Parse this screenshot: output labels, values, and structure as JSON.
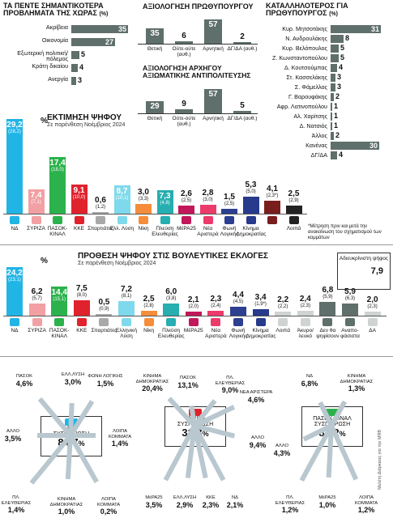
{
  "problems": {
    "title": "ΤΑ ΠΕΝΤΕ ΣΗΜΑΝΤΙΚΟΤΕΡΑ ΠΡΟΒΛΗΜΑΤΑ ΤΗΣ ΧΩΡΑΣ",
    "unit": "(%)",
    "items": [
      {
        "label": "Ακρίβεια",
        "value": "35"
      },
      {
        "label": "Οικονομία",
        "value": "27"
      },
      {
        "label": "Εξωτερική πολιτική/ πόλεμος",
        "value": "5"
      },
      {
        "label": "Κράτη δικαίου",
        "value": "4"
      },
      {
        "label": "Ανεργία",
        "value": "3"
      }
    ]
  },
  "gov_eval": {
    "title": "ΑΞΙΟΛΟΓΗΣΗ ΠΡΩΘΥΠΟΥΡΓΟΥ",
    "items": [
      {
        "label": "Θετική",
        "value": "35"
      },
      {
        "label": "Ούτε-ούτε (αυθ.)",
        "value": "6"
      },
      {
        "label": "Αρνητική",
        "value": "57"
      },
      {
        "label": "ΔΓ/ΔΑ (αυθ.)",
        "value": "2"
      }
    ]
  },
  "opp_eval": {
    "title": "ΑΞΙΟΛΟΓΗΣΗ ΑΡΧΗΓΟΥ ΑΞΙΩΜΑΤΙΚΗΣ ΑΝΤΙΠΟΛΙΤΕΥΣΗΣ",
    "items": [
      {
        "label": "Θετική",
        "value": "29"
      },
      {
        "label": "Ούτε-ούτε (αυθ.)",
        "value": "9"
      },
      {
        "label": "Αρνητική",
        "value": "57"
      },
      {
        "label": "ΔΓ/ΔΑ (αυθ.)",
        "value": "5"
      }
    ]
  },
  "pm_suit": {
    "title": "ΚΑΤΑΛΛΗΛΟΤΕΡΟΣ ΓΙΑ ΠΡΩΘΥΠΟΥΡΓΟΣ",
    "unit": "(%)",
    "items": [
      {
        "label": "Κυρ. Μητσοτάκης",
        "value": "31"
      },
      {
        "label": "Ν. Ανδρουλάκης",
        "value": "8"
      },
      {
        "label": "Κυρ. Βελόπουλος",
        "value": "5"
      },
      {
        "label": "Ζ. Κωνσταντοπούλου",
        "value": "5"
      },
      {
        "label": "Δ. Κουτσούμπας",
        "value": "4"
      },
      {
        "label": "Στ. Κασσελάκης",
        "value": "3"
      },
      {
        "label": "Σ. Φάμελλος",
        "value": "3"
      },
      {
        "label": "Γ. Βαρουφάκης",
        "value": "2"
      },
      {
        "label": "Αφρ. Λατινοπούλου",
        "value": "1"
      },
      {
        "label": "Αλ. Χαρίτσης",
        "value": "1"
      },
      {
        "label": "Δ. Νατσιός",
        "value": "1"
      },
      {
        "label": "Άλλος",
        "value": "2"
      },
      {
        "label": "Κανένας",
        "value": "30"
      },
      {
        "label": "ΔΓ/ΔΑ",
        "value": "4"
      }
    ]
  },
  "vote_est": {
    "title": "ΕΚΤΙΜΗΣΗ ΨΗΦΟΥ",
    "subtitle": "Σε παρένθεση Νοέμβριος 2024",
    "pct": "%",
    "note": "*Μέτρηση πριν και μετά την ανακοίνωση του σχηματισμού των κομμάτων",
    "parties": [
      {
        "label": "ΝΔ",
        "value": "29,2",
        "prev": "(28,2)",
        "color": "#21b5e6"
      },
      {
        "label": "ΣΥΡΙΖΑ",
        "value": "7,4",
        "prev": "(7,1)",
        "color": "#f2a0a3"
      },
      {
        "label": "ΠΑΣΟΚ-ΚΙΝΑΛ",
        "value": "17,4",
        "prev": "(18,0)",
        "color": "#2bb24c"
      },
      {
        "label": "ΚΚΕ",
        "value": "9,1",
        "prev": "(10,0)",
        "color": "#e0222d"
      },
      {
        "label": "Σπαρτιάτες",
        "value": "0,6",
        "prev": "(1,2)",
        "color": "#a9a9a9"
      },
      {
        "label": "Ελλ. Λύση",
        "value": "8,7",
        "prev": "(10,1)",
        "color": "#7fd9ec"
      },
      {
        "label": "Νίκη",
        "value": "3,0",
        "prev": "(3,3)",
        "color": "#f58d3a"
      },
      {
        "label": "Πλεύση Ελευθερίας",
        "value": "7,3",
        "prev": "(4,8)",
        "color": "#27aeb0"
      },
      {
        "label": "ΜέΡΑ25",
        "value": "2,6",
        "prev": "(2,5)",
        "color": "#c2185b"
      },
      {
        "label": "Νέα Αριστερά",
        "value": "2,8",
        "prev": "(3,0)",
        "color": "#ec3b6b"
      },
      {
        "label": "Φωνή Λογικής",
        "value": "1,5",
        "prev": "(2,5)",
        "color": "#2c3f90"
      },
      {
        "label": "Κίνημα Δημοκρατίας",
        "value": "5,3",
        "prev": "(5,0)",
        "color": "#273a8c"
      },
      {
        "label": "",
        "value": "4,1",
        "prev": "(2,3*)",
        "color": "#7a1d1d"
      },
      {
        "label": "Λοιπά",
        "value": "2,5",
        "prev": "(2,9)",
        "color": "#222222"
      }
    ]
  },
  "vote_int": {
    "title": "ΠΡΟΘΕΣΗ ΨΗΦΟΥ ΣΤΙΣ ΒΟΥΛΕΥΤΙΚΕΣ ΕΚΛΟΓΕΣ",
    "subtitle": "Σε παρένθεση Νοέμβριος 2024",
    "pct": "%",
    "box_title": "Αδιευκρίνιστη ψήφος",
    "box_value": "7,9",
    "parties": [
      {
        "label": "ΝΔ",
        "value": "24,2",
        "prev": "(23,1)",
        "color": "#21b5e6"
      },
      {
        "label": "ΣΥΡΙΖΑ",
        "value": "6,2",
        "prev": "(5,7)",
        "color": "#f2a0a3"
      },
      {
        "label": "ΠΑΣΟΚ-ΚΙΝΑΛ",
        "value": "14,4",
        "prev": "(15,1)",
        "color": "#2bb24c"
      },
      {
        "label": "ΚΚΕ",
        "value": "7,5",
        "prev": "(8,0)",
        "color": "#e0222d"
      },
      {
        "label": "Σπαρτιάτες",
        "value": "0,5",
        "prev": "(0,9)",
        "color": "#a9a9a9"
      },
      {
        "label": "Ελληνική Λύση",
        "value": "7,2",
        "prev": "(8,1)",
        "color": "#7fd9ec"
      },
      {
        "label": "Νίκη",
        "value": "2,5",
        "prev": "(2,8)",
        "color": "#f58d3a"
      },
      {
        "label": "Πλεύση Ελευθερίας",
        "value": "6,0",
        "prev": "(3,8)",
        "color": "#27aeb0"
      },
      {
        "label": "ΜέΡΑ25",
        "value": "2,1",
        "prev": "(2,0)",
        "color": "#c2185b"
      },
      {
        "label": "Νέα Αριστερά",
        "value": "2,3",
        "prev": "(2,4)",
        "color": "#ec3b6b"
      },
      {
        "label": "Φωνή Λογικής",
        "value": "4,4",
        "prev": "(4,5)",
        "color": "#2c3f90"
      },
      {
        "label": "Κίνημα Δημοκρατίας",
        "value": "3,4",
        "prev": "(1,9*)",
        "color": "#273a8c"
      },
      {
        "label": "Λοιπά",
        "value": "2,2",
        "prev": "(2,2)",
        "color": "#cfd4d3"
      },
      {
        "label": "Άκυρο/ λευκό",
        "value": "2,4",
        "prev": "(2,3)",
        "color": "#cfd4d3"
      },
      {
        "label": "Δεν θα ψηφίσουν",
        "value": "6,8",
        "prev": "(5,9)",
        "color": "#5f6f6c"
      },
      {
        "label": "Αναπο-φάσιστα",
        "value": "5,9",
        "prev": "(6,3)",
        "color": "#5f6f6c"
      },
      {
        "label": "ΔΑ",
        "value": "2,0",
        "prev": "(2,3)",
        "color": "#cfd4d3"
      }
    ]
  },
  "consolidation": {
    "source": "Μελέτη Διάρκειας για την ΜRB",
    "groups": [
      {
        "party": "ΝΔ",
        "title": "ΣΥΣΠΕΙΡΩΣΗ",
        "value": "84,7",
        "suffix": "%",
        "flows": [
          {
            "label": "ΠΑΣΟΚ",
            "value": "4,6%"
          },
          {
            "label": "ΕΛΛ.ΛΥΣΗ",
            "value": "3,0%"
          },
          {
            "label": "ΦΩΝΗ ΛΟΓΙΚΗΣ",
            "value": "1,5%"
          },
          {
            "label": "ΛΟΙΠΑ ΚΟΜΜΑΤΑ",
            "value": "1,4%"
          },
          {
            "label": "ΑΛΛΟ",
            "value": "3,5%"
          },
          {
            "label": "ΠΛ. ΕΛΕΥΘΕΡΙΑΣ",
            "value": "1,4%"
          },
          {
            "label": "ΚΙΝΗΜΑ ΔΗΜΟΚΡΑΤΙΑΣ",
            "value": "1,0%"
          },
          {
            "label": "ΛΟΙΠΑ ΚΟΜΜΑΤΑ",
            "value": "0,2%"
          }
        ]
      },
      {
        "party": "ΣΥΡΙΖΑ",
        "title": "ΣΥΣΠΕΙΡΩΣΗ",
        "value": "31,3",
        "suffix": "%",
        "flows": [
          {
            "label": "ΚΙΝΗΜΑ ΔΗΜΟΚΡΑΤΙΑΣ",
            "value": "20,4%"
          },
          {
            "label": "ΠΑΣΟΚ",
            "value": "13,1%"
          },
          {
            "label": "ΠΛ. ΕΛΕΥΘΕΡΙΑΣ",
            "value": "9,0%"
          },
          {
            "label": "ΝΕΑ ΑΡΙΣΤΕΡΑ",
            "value": "4,6%"
          },
          {
            "label": "ΑΛΛΟ",
            "value": "9,4%"
          },
          {
            "label": "ΜέΡΑ25",
            "value": "3,5%"
          },
          {
            "label": "ΕΛΛ.ΛΥΣΗ",
            "value": "2,9%"
          },
          {
            "label": "ΚΚΕ",
            "value": "2,3%"
          },
          {
            "label": "ΝΔ",
            "value": "2,1%"
          }
        ]
      },
      {
        "party": "ΠΑΣΟΚ-ΚΙΝΑΛ",
        "title": "ΣΥΣΠΕΙΡΩΣΗ",
        "value": "84,2",
        "suffix": "%",
        "flows": [
          {
            "label": "ΝΔ",
            "value": "6,8%"
          },
          {
            "label": "ΚΙΝΗΜΑ ΔΗΜΟΚΡΑΤΙΑΣ",
            "value": "1,3%"
          },
          {
            "label": "ΑΛΛΟ",
            "value": "4,3%"
          },
          {
            "label": "ΠΛ. ΕΛΕΥΘΕΡΙΑΣ",
            "value": "1,2%"
          },
          {
            "label": "ΜέΡΑ25",
            "value": "1,0%"
          },
          {
            "label": "ΛΟΙΠΑ ΚΟΜΜΑΤΑ",
            "value": "1,2%"
          }
        ]
      }
    ]
  },
  "chart_data": [
    {
      "type": "bar",
      "orientation": "horizontal",
      "title": "ΤΑ ΠΕΝΤΕ ΣΗΜΑΝΤΙΚΟΤΕΡΑ ΠΡΟΒΛΗΜΑΤΑ ΤΗΣ ΧΩΡΑΣ (%)",
      "categories": [
        "Ακρίβεια",
        "Οικονομία",
        "Εξωτερική πολιτική/ πόλεμος",
        "Κράτη δικαίου",
        "Ανεργία"
      ],
      "values": [
        35,
        27,
        5,
        4,
        3
      ]
    },
    {
      "type": "bar",
      "title": "ΑΞΙΟΛΟΓΗΣΗ ΠΡΩΘΥΠΟΥΡΓΟΥ",
      "categories": [
        "Θετική",
        "Ούτε-ούτε (αυθ.)",
        "Αρνητική",
        "ΔΓ/ΔΑ (αυθ.)"
      ],
      "values": [
        35,
        6,
        57,
        2
      ]
    },
    {
      "type": "bar",
      "title": "ΑΞΙΟΛΟΓΗΣΗ ΑΡΧΗΓΟΥ ΑΞΙΩΜΑΤΙΚΗΣ ΑΝΤΙΠΟΛΙΤΕΥΣΗΣ",
      "categories": [
        "Θετική",
        "Ούτε-ούτε (αυθ.)",
        "Αρνητική",
        "ΔΓ/ΔΑ (αυθ.)"
      ],
      "values": [
        29,
        9,
        57,
        5
      ]
    },
    {
      "type": "bar",
      "orientation": "horizontal",
      "title": "ΚΑΤΑΛΛΗΛΟΤΕΡΟΣ ΓΙΑ ΠΡΩΘΥΠΟΥΡΓΟΣ (%)",
      "categories": [
        "Κυρ. Μητσοτάκης",
        "Ν. Ανδρουλάκης",
        "Κυρ. Βελόπουλος",
        "Ζ. Κωνσταντοπούλου",
        "Δ. Κουτσούμπας",
        "Στ. Κασσελάκης",
        "Σ. Φάμελλος",
        "Γ. Βαρουφάκης",
        "Αφρ. Λατινοπούλου",
        "Αλ. Χαρίτσης",
        "Δ. Νατσιός",
        "Άλλος",
        "Κανένας",
        "ΔΓ/ΔΑ"
      ],
      "values": [
        31,
        8,
        5,
        5,
        4,
        3,
        3,
        2,
        1,
        1,
        1,
        2,
        30,
        4
      ]
    },
    {
      "type": "bar",
      "title": "ΕΚΤΙΜΗΣΗ ΨΗΦΟΥ",
      "subtitle": "Σε παρένθεση Νοέμβριος 2024",
      "categories": [
        "ΝΔ",
        "ΣΥΡΙΖΑ",
        "ΠΑΣΟΚ-ΚΙΝΑΛ",
        "ΚΚΕ",
        "Σπαρτιάτες",
        "Ελλ. Λύση",
        "Νίκη",
        "Πλεύση Ελευθερίας",
        "ΜέΡΑ25",
        "Νέα Αριστερά",
        "Φωνή Λογικής",
        "Κίνημα Δημοκρατίας",
        "",
        "Λοιπά"
      ],
      "series": [
        {
          "values": [
            29.2,
            7.4,
            17.4,
            9.1,
            0.6,
            8.7,
            3.0,
            7.3,
            2.6,
            2.8,
            1.5,
            5.3,
            4.1,
            2.5
          ]
        },
        {
          "values": [
            28.2,
            7.1,
            18.0,
            10.0,
            1.2,
            10.1,
            3.3,
            4.8,
            2.5,
            3.0,
            2.5,
            5.0,
            2.3,
            2.9
          ]
        }
      ]
    },
    {
      "type": "bar",
      "title": "ΠΡΟΘΕΣΗ ΨΗΦΟΥ ΣΤΙΣ ΒΟΥΛΕΥΤΙΚΕΣ ΕΚΛΟΓΕΣ",
      "subtitle": "Σε παρένθεση Νοέμβριος 2024",
      "categories": [
        "ΝΔ",
        "ΣΥΡΙΖΑ",
        "ΠΑΣΟΚ-ΚΙΝΑΛ",
        "ΚΚΕ",
        "Σπαρτιάτες",
        "Ελληνική Λύση",
        "Νίκη",
        "Πλεύση Ελευθερίας",
        "ΜέΡΑ25",
        "Νέα Αριστερά",
        "Φωνή Λογικής",
        "Κίνημα Δημοκρατίας",
        "Λοιπά",
        "Άκυρο/ λευκό",
        "Δεν θα ψηφίσουν",
        "Αναπο-φάσιστα",
        "ΔΑ"
      ],
      "series": [
        {
          "values": [
            24.2,
            6.2,
            14.4,
            7.5,
            0.5,
            7.2,
            2.5,
            6.0,
            2.1,
            2.3,
            4.4,
            3.4,
            2.2,
            2.4,
            6.8,
            5.9,
            2.0
          ]
        },
        {
          "values": [
            23.1,
            5.7,
            15.1,
            8.0,
            0.9,
            8.1,
            2.8,
            3.8,
            2.0,
            2.4,
            4.5,
            1.9,
            2.2,
            2.3,
            5.9,
            6.3,
            2.3
          ]
        }
      ]
    }
  ]
}
